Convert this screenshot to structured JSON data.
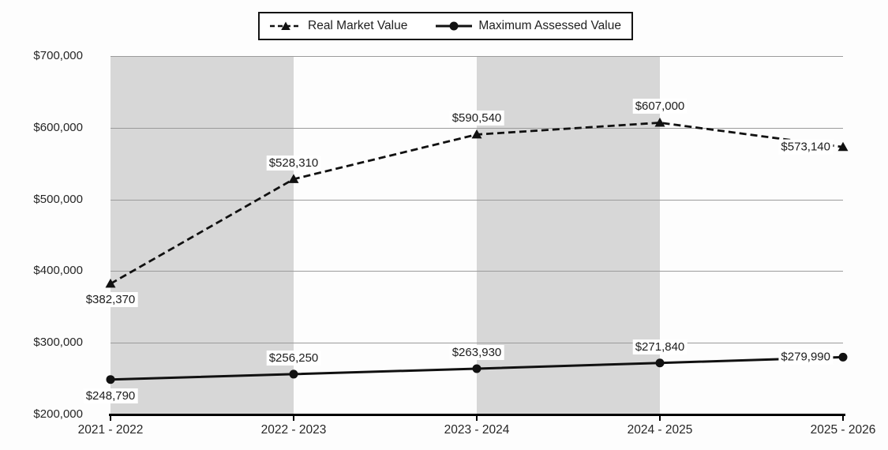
{
  "chart_data": {
    "type": "line",
    "title": "",
    "categories": [
      "2021 - 2022",
      "2022 - 2023",
      "2023 - 2024",
      "2024 - 2025",
      "2025 - 2026"
    ],
    "series": [
      {
        "name": "Real Market Value",
        "line_style": "dashed",
        "marker": "triangle",
        "color": "#111111",
        "values": [
          382370,
          528310,
          590540,
          607000,
          573140
        ],
        "point_labels": [
          "$382,370",
          "$528,310",
          "$590,540",
          "$607,000",
          "$573,140"
        ],
        "label_placement": [
          "below",
          "above",
          "above",
          "above",
          "left"
        ]
      },
      {
        "name": "Maximum Assessed Value",
        "line_style": "solid",
        "marker": "circle",
        "color": "#111111",
        "values": [
          248790,
          256250,
          263930,
          271840,
          279990
        ],
        "point_labels": [
          "$248,790",
          "$256,250",
          "$263,930",
          "$271,840",
          "$279,990"
        ],
        "label_placement": [
          "below",
          "above",
          "above",
          "above",
          "left"
        ]
      }
    ],
    "y_axis": {
      "min": 200000,
      "max": 700000,
      "step": 100000,
      "tick_labels_top_to_bottom": [
        "$700,000",
        "$600,000",
        "$500,000",
        "$400,000",
        "$300,000",
        "$200,000"
      ]
    },
    "x_axis": {
      "tick_marks": true
    },
    "legend_position": "top-center",
    "grid": "horizontal-major",
    "background_bands": {
      "description": "alternating vertical bands between category positions",
      "pattern": [
        "gray",
        "white",
        "gray",
        "white"
      ],
      "color": "#d7d7d7"
    },
    "colors": {
      "axis": "#000000",
      "gridline": "#9b9b9b",
      "band": "#d7d7d7",
      "series_line": "#111111",
      "point_label_background": "#ffffff",
      "text": "#1f1f1f"
    }
  },
  "legend": {
    "items": [
      {
        "label": "Real Market Value",
        "marker": "dashed-line-triangle"
      },
      {
        "label": "Maximum Assessed Value",
        "marker": "solid-line-circle"
      }
    ]
  }
}
